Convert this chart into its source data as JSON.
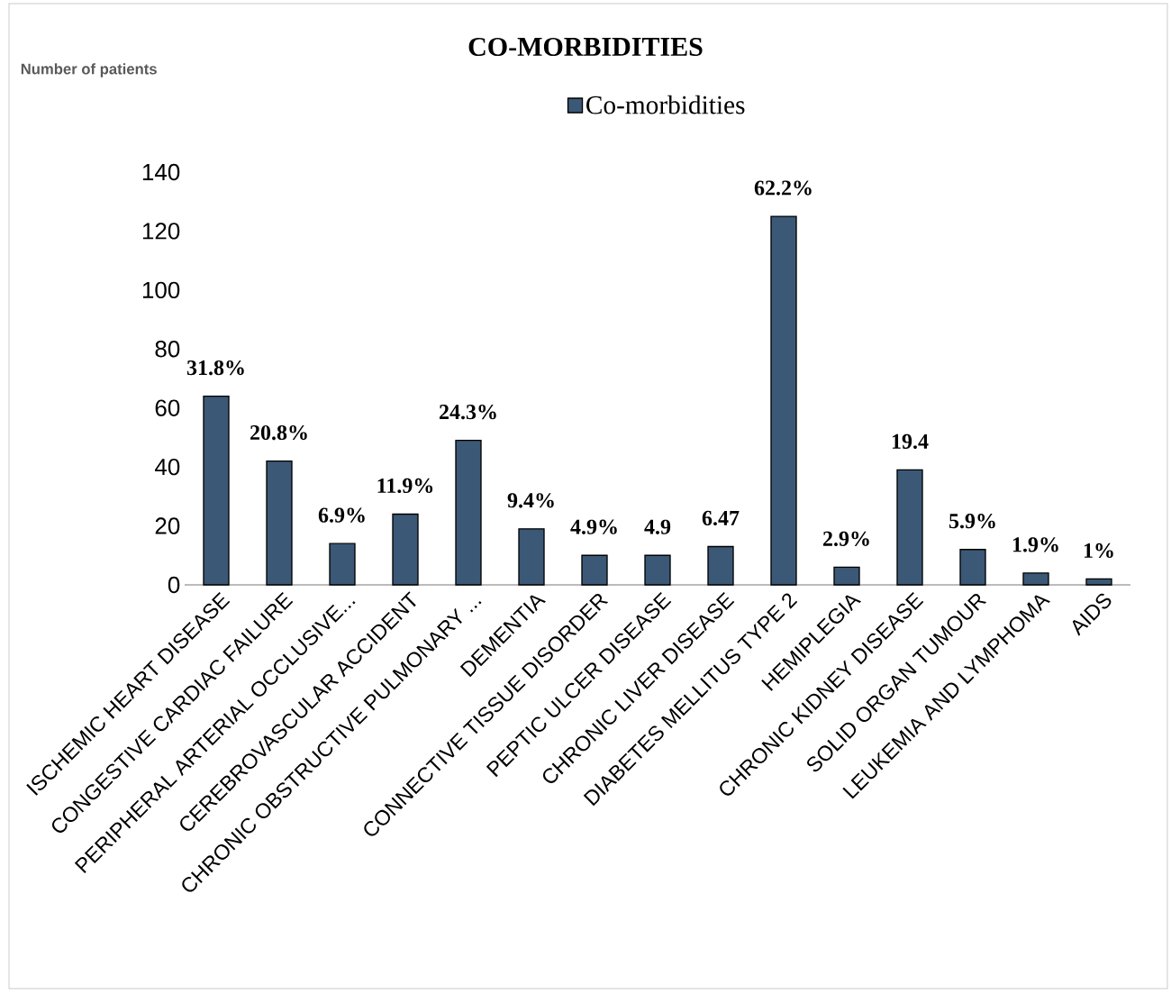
{
  "chart_data": {
    "type": "bar",
    "title": "CO-MORBIDITIES",
    "annotations": [
      "Number of patients",
      {
        "text": "31.8%",
        "x": "ISCHEMIC HEART DISEASE",
        "y": 64
      },
      {
        "text": "20.8%",
        "x": "CONGESTIVE CARDIAC FAILURE",
        "y": 42
      },
      {
        "text": "6.9%",
        "x": "PERIPHERAL ARTERIAL OCCLUSIVE...",
        "y": 14
      },
      {
        "text": "11.9%",
        "x": "CEREBROVASCULAR ACCIDENT",
        "y": 24
      },
      {
        "text": "24.3%",
        "x": "CHRONIC OBSTRUCTIVE PULMONARY ...",
        "y": 49
      },
      {
        "text": "9.4%",
        "x": "DEMENTIA",
        "y": 19
      },
      {
        "text": "4.9%",
        "x": "CONNECTIVE TISSUE DISORDER",
        "y": 10
      },
      {
        "text": "4.9",
        "x": "PEPTIC ULCER DISEASE",
        "y": 10
      },
      {
        "text": "6.47",
        "x": "CHRONIC LIVER DISEASE",
        "y": 13
      },
      {
        "text": "62.2%",
        "x": "DIABETES MELLITUS TYPE 2",
        "y": 125
      },
      {
        "text": "2.9%",
        "x": "HEMIPLEGIA",
        "y": 6
      },
      {
        "text": "19.4",
        "x": "CHRONIC KIDNEY DISEASE",
        "y": 39
      },
      {
        "text": "5.9%",
        "x": "SOLID ORGAN TUMOUR",
        "y": 12
      },
      {
        "text": "1.9%",
        "x": "LEUKEMIA AND LYMPHOMA",
        "y": 4
      },
      {
        "text": "1%",
        "x": "AIDS",
        "y": 2
      }
    ],
    "categories": [
      "ISCHEMIC HEART DISEASE",
      "CONGESTIVE CARDIAC FAILURE",
      "PERIPHERAL ARTERIAL OCCLUSIVE...",
      "CEREBROVASCULAR ACCIDENT",
      "CHRONIC OBSTRUCTIVE PULMONARY ...",
      "DEMENTIA",
      "CONNECTIVE TISSUE DISORDER",
      "PEPTIC ULCER DISEASE",
      "CHRONIC LIVER DISEASE",
      "DIABETES MELLITUS TYPE 2",
      "HEMIPLEGIA",
      "CHRONIC KIDNEY DISEASE",
      "SOLID ORGAN TUMOUR",
      "LEUKEMIA AND LYMPHOMA",
      "AIDS"
    ],
    "series": [
      {
        "name": "Co-morbidities",
        "color": "#3b5876",
        "values": [
          64,
          42,
          14,
          24,
          49,
          19,
          10,
          10,
          13,
          125,
          6,
          39,
          12,
          4,
          2
        ]
      }
    ],
    "ylim": [
      0,
      140
    ],
    "yticks": [
      0,
      20,
      40,
      60,
      80,
      100,
      120,
      140
    ],
    "legend": "top"
  }
}
